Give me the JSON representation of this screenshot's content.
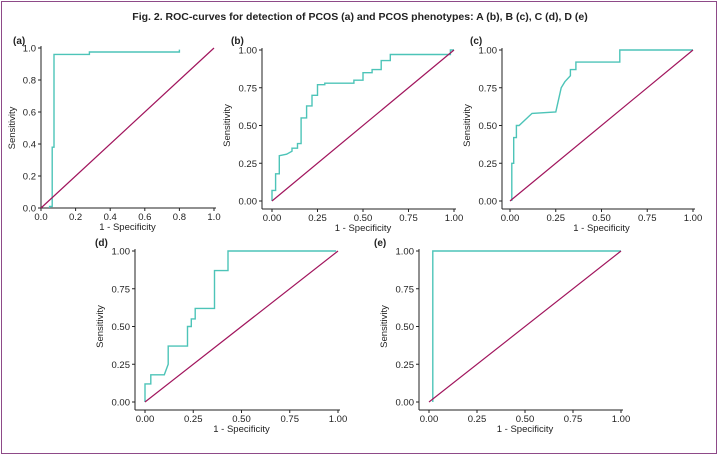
{
  "figure": {
    "title": "Fig. 2. ROC-curves for detection of PCOS (a) and PCOS phenotypes: A (b), B (c), C (d), D (e)"
  },
  "colors": {
    "roc": "#4dc4b8",
    "diagonal": "#a1155d",
    "axis": "#222222",
    "frame": "#8e4a88"
  },
  "chart_data": [
    {
      "type": "line",
      "panel": "(a)",
      "xlabel": "1 - Specificity",
      "ylabel": "Sensitivity",
      "xlim": [
        0,
        1
      ],
      "ylim": [
        0,
        1
      ],
      "x_ticks": [
        "0.0",
        "0.2",
        "0.4",
        "0.6",
        "0.8",
        "1.0"
      ],
      "y_ticks": [
        "0.0",
        "0.2",
        "0.4",
        "0.6",
        "0.8",
        "1.0"
      ],
      "series": [
        {
          "name": "ROC",
          "x": [
            0.05,
            0.05,
            0.065,
            0.065,
            0.075,
            0.075,
            0.1,
            0.28,
            0.28,
            0.8,
            0.8
          ],
          "y": [
            0,
            0.01,
            0.01,
            0.38,
            0.38,
            0.96,
            0.96,
            0.96,
            0.975,
            0.975,
            0.99
          ]
        },
        {
          "name": "Reference",
          "x": [
            0,
            1
          ],
          "y": [
            0,
            1
          ]
        }
      ]
    },
    {
      "type": "line",
      "panel": "(b)",
      "xlabel": "1 - Specificity",
      "ylabel": "Sensitivity",
      "xlim": [
        0,
        1
      ],
      "ylim": [
        0,
        1
      ],
      "x_ticks": [
        "0.00",
        "0.25",
        "0.50",
        "0.75",
        "1.00"
      ],
      "y_ticks": [
        "0.00",
        "0.25",
        "0.50",
        "0.75",
        "1.00"
      ],
      "series": [
        {
          "name": "ROC",
          "x": [
            0,
            0,
            0.02,
            0.02,
            0.04,
            0.04,
            0.08,
            0.11,
            0.11,
            0.14,
            0.14,
            0.16,
            0.16,
            0.19,
            0.19,
            0.22,
            0.22,
            0.25,
            0.25,
            0.29,
            0.29,
            0.45,
            0.45,
            0.5,
            0.5,
            0.55,
            0.55,
            0.6,
            0.6,
            0.65,
            0.65,
            0.98,
            0.98,
            1
          ],
          "y": [
            0,
            0.07,
            0.07,
            0.18,
            0.18,
            0.3,
            0.31,
            0.33,
            0.35,
            0.35,
            0.38,
            0.38,
            0.55,
            0.55,
            0.63,
            0.63,
            0.7,
            0.7,
            0.77,
            0.77,
            0.78,
            0.78,
            0.8,
            0.8,
            0.85,
            0.85,
            0.87,
            0.87,
            0.93,
            0.93,
            0.97,
            0.97,
            1,
            1
          ]
        },
        {
          "name": "Reference",
          "x": [
            0,
            1
          ],
          "y": [
            0,
            1
          ]
        }
      ]
    },
    {
      "type": "line",
      "panel": "(c)",
      "xlabel": "1 - Specificity",
      "ylabel": "Sensitivity",
      "xlim": [
        0,
        1
      ],
      "ylim": [
        0,
        1
      ],
      "x_ticks": [
        "0.00",
        "0.25",
        "0.50",
        "0.75",
        "1.00"
      ],
      "y_ticks": [
        "0.00",
        "0.25",
        "0.50",
        "0.75",
        "1.00"
      ],
      "series": [
        {
          "name": "ROC",
          "x": [
            0.01,
            0.01,
            0.02,
            0.02,
            0.035,
            0.035,
            0.05,
            0.05,
            0.12,
            0.12,
            0.25,
            0.28,
            0.3,
            0.33,
            0.33,
            0.36,
            0.36,
            0.6,
            0.6,
            1
          ],
          "y": [
            0,
            0.25,
            0.25,
            0.42,
            0.42,
            0.5,
            0.5,
            0.5,
            0.58,
            0.58,
            0.59,
            0.75,
            0.79,
            0.83,
            0.87,
            0.87,
            0.92,
            0.92,
            1,
            1
          ]
        },
        {
          "name": "Reference",
          "x": [
            0,
            1
          ],
          "y": [
            0,
            1
          ]
        }
      ]
    },
    {
      "type": "line",
      "panel": "(d)",
      "xlabel": "1 - Specificity",
      "ylabel": "Sensitivity",
      "xlim": [
        0,
        1
      ],
      "ylim": [
        0,
        1
      ],
      "x_ticks": [
        "0.00",
        "0.25",
        "0.50",
        "0.75",
        "1.00"
      ],
      "y_ticks": [
        "0.00",
        "0.25",
        "0.50",
        "0.75",
        "1.00"
      ],
      "series": [
        {
          "name": "ROC",
          "x": [
            0,
            0,
            0.03,
            0.03,
            0.1,
            0.12,
            0.12,
            0.22,
            0.22,
            0.24,
            0.24,
            0.26,
            0.26,
            0.36,
            0.36,
            0.43,
            0.43,
            0.99
          ],
          "y": [
            0,
            0.12,
            0.12,
            0.18,
            0.18,
            0.25,
            0.37,
            0.37,
            0.5,
            0.5,
            0.55,
            0.55,
            0.62,
            0.62,
            0.87,
            0.87,
            1,
            1
          ]
        },
        {
          "name": "Reference",
          "x": [
            0,
            1
          ],
          "y": [
            0,
            1
          ]
        }
      ]
    },
    {
      "type": "line",
      "panel": "(e)",
      "xlabel": "1 - Specificity",
      "ylabel": "Sensitivity",
      "xlim": [
        0,
        1
      ],
      "ylim": [
        0,
        1
      ],
      "x_ticks": [
        "0.00",
        "0.25",
        "0.50",
        "0.75",
        "1.00"
      ],
      "y_ticks": [
        "0.00",
        "0.25",
        "0.50",
        "0.75",
        "1.00"
      ],
      "series": [
        {
          "name": "ROC",
          "x": [
            0.02,
            0.02,
            1
          ],
          "y": [
            0,
            1,
            1
          ]
        },
        {
          "name": "Reference",
          "x": [
            0,
            1
          ],
          "y": [
            0,
            1
          ]
        }
      ]
    }
  ]
}
